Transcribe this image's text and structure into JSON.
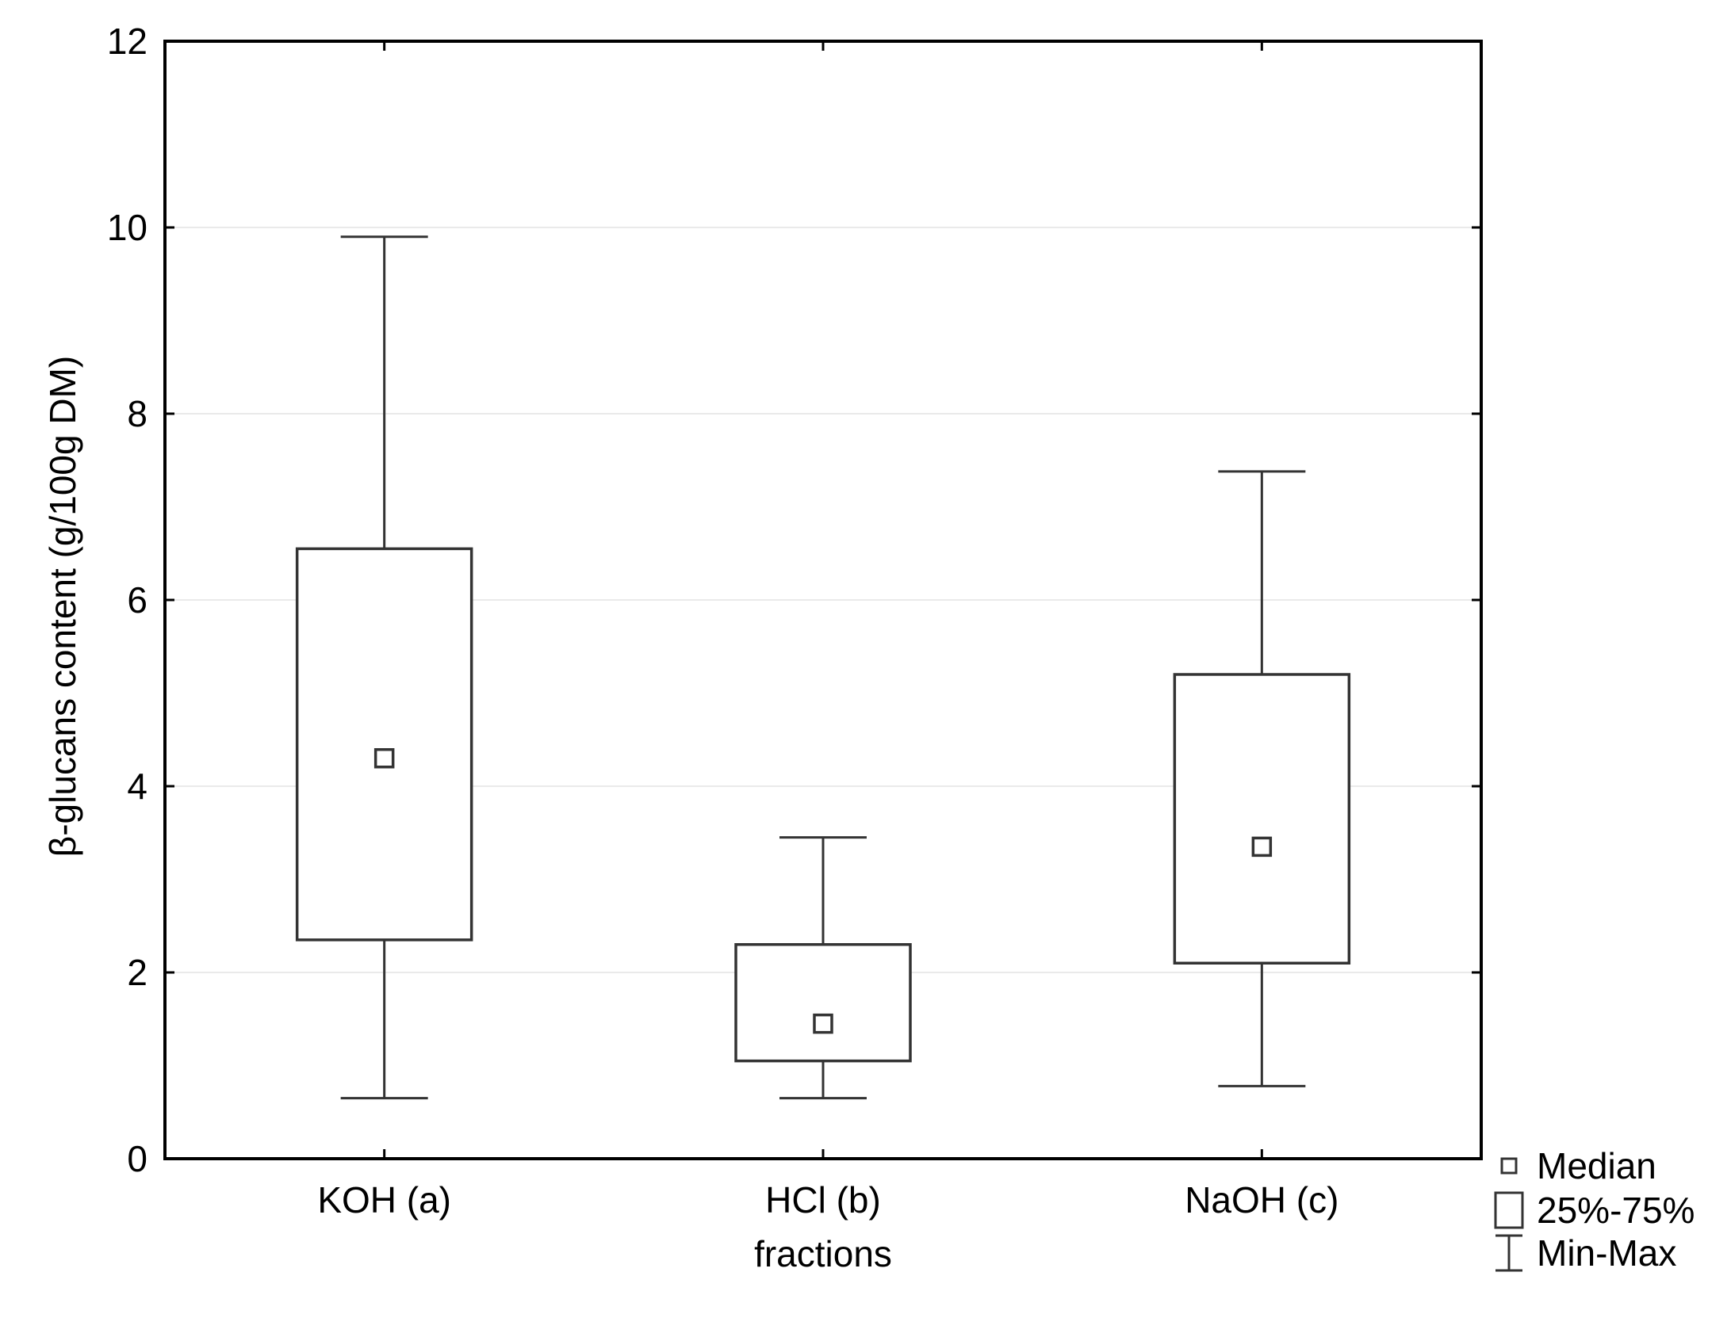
{
  "chart_data": {
    "type": "box",
    "xlabel": "fractions",
    "ylabel": "β-glucans content (g/100g DM)",
    "ylim": [
      0,
      12
    ],
    "y_ticks": [
      0,
      2,
      4,
      6,
      8,
      10,
      12
    ],
    "y_tick_labels": [
      "0",
      "2",
      "4",
      "6",
      "8",
      "10",
      "12"
    ],
    "grid": "horizontal",
    "categories": [
      "KOH (a)",
      "HCl (b)",
      "NaOH (c)"
    ],
    "boxes": [
      {
        "category": "KOH (a)",
        "min": 0.65,
        "q1": 2.35,
        "median": 4.3,
        "q3": 6.55,
        "max": 9.9
      },
      {
        "category": "HCl (b)",
        "min": 0.65,
        "q1": 1.05,
        "median": 1.45,
        "q3": 2.3,
        "max": 3.45
      },
      {
        "category": "NaOH (c)",
        "min": 0.78,
        "q1": 2.1,
        "median": 3.35,
        "q3": 5.2,
        "max": 7.38
      }
    ],
    "legend": {
      "position": "bottom-right outside",
      "entries": [
        {
          "symbol": "median-square",
          "label": "Median"
        },
        {
          "symbol": "box",
          "label": "25%-75%"
        },
        {
          "symbol": "whisker",
          "label": "Min-Max"
        }
      ]
    },
    "colors": {
      "line": "#333333",
      "grid": "#e4e4e4",
      "background": "#ffffff"
    }
  }
}
